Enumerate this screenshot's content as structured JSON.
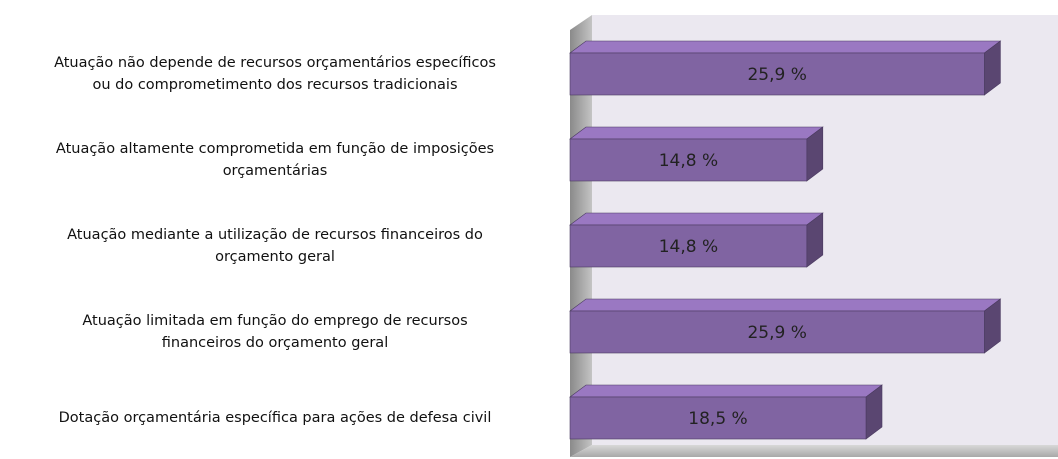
{
  "chart_data": {
    "type": "bar",
    "orientation": "horizontal",
    "categories": [
      "Atuação não depende de recursos orçamentários específicos\nou do comprometimento dos recursos tradicionais",
      "Atuação altamente comprometida em função de imposições\norçamentárias",
      "Atuação mediante a utilização de recursos financeiros do\norçamento geral",
      "Atuação limitada em função do emprego de recursos\nfinanceiros do orçamento geral",
      "Dotação orçamentária específica para ações de defesa civil"
    ],
    "values": [
      25.9,
      14.8,
      14.8,
      25.9,
      18.5
    ],
    "value_labels": [
      "25,9 %",
      "14,8 %",
      "14,8 %",
      "25,9 %",
      "18,5 %"
    ],
    "color": "#8064a2"
  }
}
